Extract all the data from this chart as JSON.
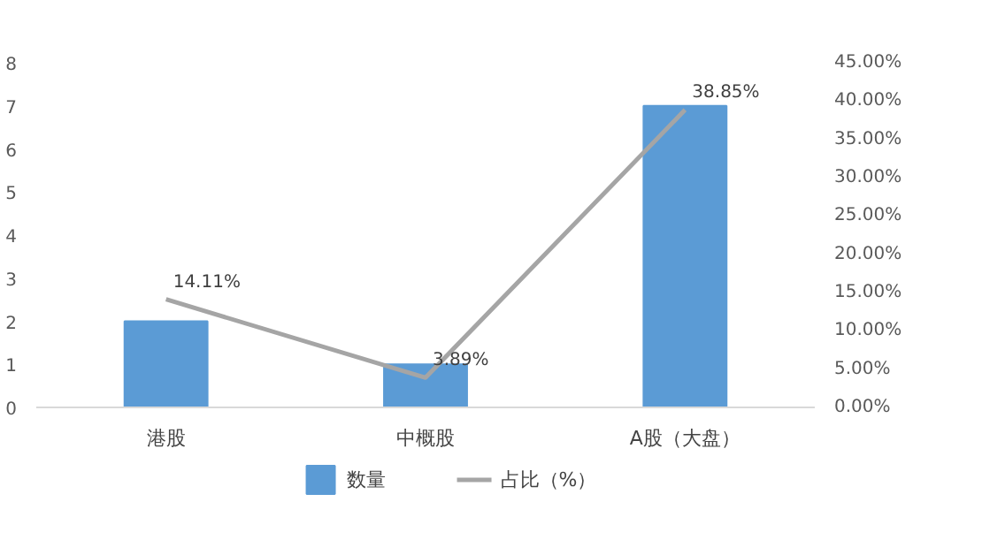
{
  "chart_data": {
    "type": "bar",
    "categories": [
      "港股",
      "中概股",
      "A股（大盘）"
    ],
    "series": [
      {
        "name": "数量",
        "type": "bar",
        "color": "#5b9bd5",
        "values": [
          2,
          1,
          7
        ]
      },
      {
        "name": "占比（%）",
        "type": "line",
        "axis": "y2",
        "color": "#a5a5a5",
        "values": [
          14.11,
          3.89,
          38.85
        ],
        "value_labels": [
          "14.11%",
          "3.89%",
          "38.85%"
        ]
      }
    ],
    "ylim": [
      0,
      8
    ],
    "yticks": [
      0,
      1,
      2,
      3,
      4,
      5,
      6,
      7,
      8
    ],
    "y2lim": [
      0,
      45
    ],
    "y2ticks": [
      {
        "value": 0,
        "label": "0.00%"
      },
      {
        "value": 5,
        "label": "5.00%"
      },
      {
        "value": 10,
        "label": "10.00%"
      },
      {
        "value": 15,
        "label": "15.00%"
      },
      {
        "value": 20,
        "label": "20.00%"
      },
      {
        "value": 25,
        "label": "25.00%"
      },
      {
        "value": 30,
        "label": "30.00%"
      },
      {
        "value": 35,
        "label": "35.00%"
      },
      {
        "value": 40,
        "label": "40.00%"
      },
      {
        "value": 45,
        "label": "45.00%"
      }
    ],
    "grid": false,
    "legend": "bottom",
    "marker": "none",
    "line_style": "solid"
  }
}
